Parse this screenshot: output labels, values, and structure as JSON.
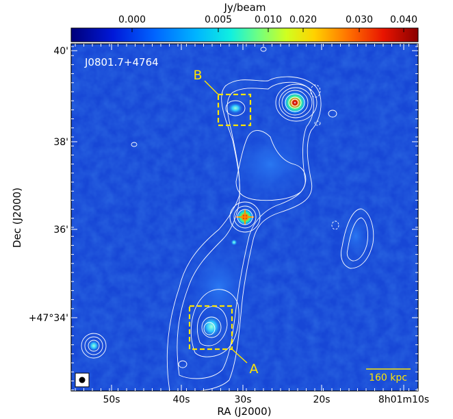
{
  "colorbar": {
    "title": "Jy/beam",
    "ticks": [
      {
        "label": "0.000",
        "value": 0.0
      },
      {
        "label": "0.005",
        "value": 0.005
      },
      {
        "label": "0.010",
        "value": 0.01
      },
      {
        "label": "0.020",
        "value": 0.02
      },
      {
        "label": "0.030",
        "value": 0.03
      },
      {
        "label": "0.040",
        "value": 0.04
      }
    ]
  },
  "panel": {
    "source_name": "J0801.7+4764",
    "scale_bar_label": "160 kpc"
  },
  "axes": {
    "xlabel": "RA (J2000)",
    "ylabel": "Dec (J2000)",
    "x_ticks": [
      "50s",
      "40s",
      "30s",
      "20s",
      "8h01m10s"
    ],
    "y_ticks": [
      "40'",
      "38'",
      "36'",
      "+47°34'"
    ]
  },
  "regions": [
    {
      "label": "A"
    },
    {
      "label": "B"
    }
  ],
  "colors": {
    "background": "#1747d6",
    "contour": "#ffffff",
    "region_box": "#ffe600",
    "label": "#ffe600"
  }
}
